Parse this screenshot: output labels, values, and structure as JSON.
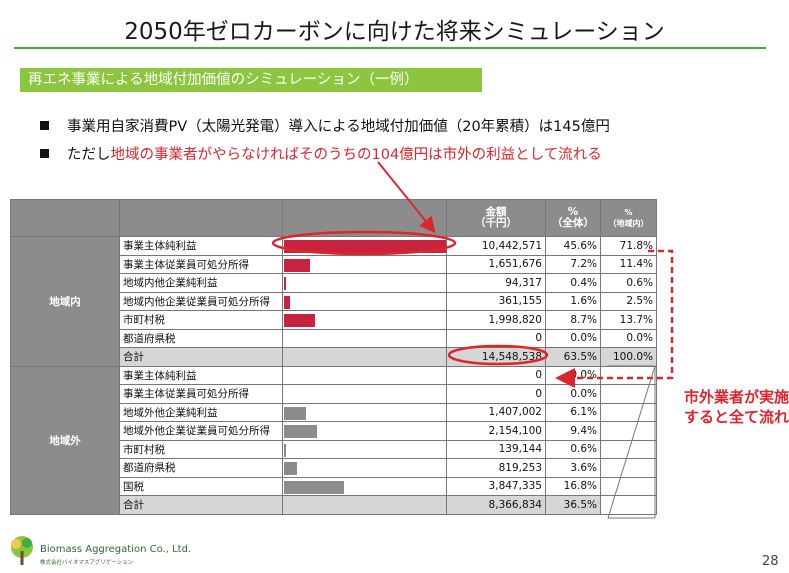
{
  "title": "2050年ゼロカーボンに向けた将来シミュレーション",
  "section_label": "再エネ事業による地域付加価値のシミュレーション（一例）",
  "bullets": [
    {
      "text": "事業用自家消費PV（太陽光発電）導入による地域付加価値（20年累積）は145億円"
    },
    {
      "prefix": "ただし",
      "highlight": "地域の事業者がやらなければそのうちの104億円は市外の利益として流れる"
    }
  ],
  "table": {
    "headers": {
      "amount": "金額\n（千円）",
      "pct_all": "%\n（全体）",
      "pct_local": "%\n（地域内）"
    },
    "groups": [
      {
        "name": "地域内",
        "rows": [
          {
            "label": "事業主体純利益",
            "amount": "10,442,571",
            "pct_all": "45.6%",
            "pct_local": "71.8%",
            "ratio": 0.456
          },
          {
            "label": "事業主体従業員可処分所得",
            "amount": "1,651,676",
            "pct_all": "7.2%",
            "pct_local": "11.4%",
            "ratio": 0.072
          },
          {
            "label": "地域内他企業純利益",
            "amount": "94,317",
            "pct_all": "0.4%",
            "pct_local": "0.6%",
            "ratio": 0.004
          },
          {
            "label": "地域内他企業従業員可処分所得",
            "amount": "361,155",
            "pct_all": "1.6%",
            "pct_local": "2.5%",
            "ratio": 0.016
          },
          {
            "label": "市町村税",
            "amount": "1,998,820",
            "pct_all": "8.7%",
            "pct_local": "13.7%",
            "ratio": 0.087
          },
          {
            "label": "都道府県税",
            "amount": "0",
            "pct_all": "0.0%",
            "pct_local": "0.0%",
            "ratio": 0
          }
        ],
        "total": {
          "label": "合計",
          "amount": "14,548,538",
          "pct_all": "63.5%",
          "pct_local": "100.0%"
        }
      },
      {
        "name": "地域外",
        "rows": [
          {
            "label": "事業主体純利益",
            "amount": "0",
            "pct_all": "0.0%",
            "ratio": 0
          },
          {
            "label": "事業主体従業員可処分所得",
            "amount": "0",
            "pct_all": "0.0%",
            "ratio": 0
          },
          {
            "label": "地域外他企業純利益",
            "amount": "1,407,002",
            "pct_all": "6.1%",
            "ratio": 0.061
          },
          {
            "label": "地域外他企業従業員可処分所得",
            "amount": "2,154,100",
            "pct_all": "9.4%",
            "ratio": 0.094
          },
          {
            "label": "市町村税",
            "amount": "139,144",
            "pct_all": "0.6%",
            "ratio": 0.006
          },
          {
            "label": "都道府県税",
            "amount": "819,253",
            "pct_all": "3.6%",
            "ratio": 0.036
          },
          {
            "label": "国税",
            "amount": "3,847,335",
            "pct_all": "16.8%",
            "ratio": 0.168
          }
        ],
        "total": {
          "label": "合計",
          "amount": "8,366,834",
          "pct_all": "36.5%"
        }
      }
    ]
  },
  "callout": [
    "市外業者が実施",
    "すると全て流れる"
  ],
  "footer": {
    "company": "Biomass Aggregation Co., Ltd.",
    "company_jp": "株式会社バイオマスアグリゲーション",
    "page_number": "28"
  },
  "colors": {
    "accent_green": "#8cc63f",
    "title_line": "#3dae3e",
    "highlight_red": "#e0242b",
    "bar_red": "#c7233f",
    "bar_gray": "#8c8c8c"
  }
}
